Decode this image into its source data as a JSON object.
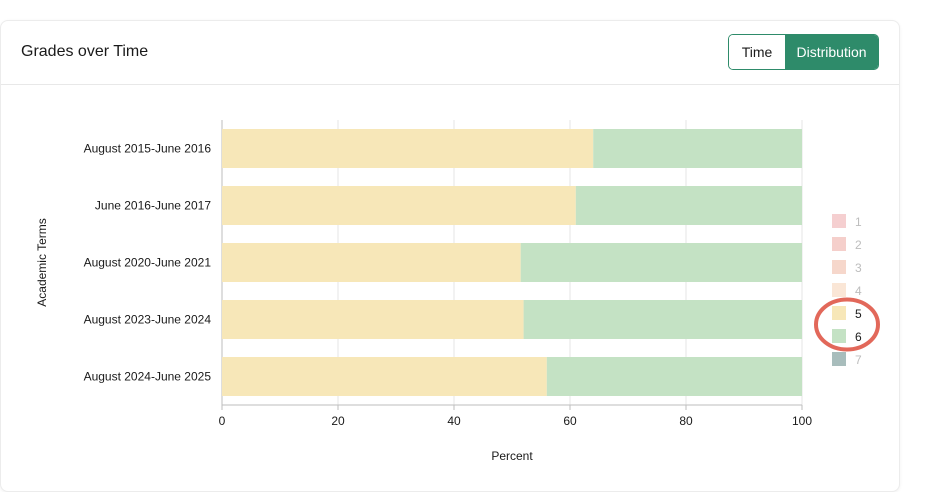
{
  "card": {
    "title": "Grades over Time",
    "toggle": {
      "time_label": "Time",
      "distribution_label": "Distribution",
      "active": "Distribution"
    }
  },
  "colors": {
    "accent": "#2e8b6a",
    "grid": "#e6e6e6"
  },
  "chart_data": {
    "type": "bar",
    "orientation": "horizontal",
    "stacked": true,
    "xlabel": "Percent",
    "ylabel": "Academic Terms",
    "xlim": [
      0,
      100
    ],
    "xticks": [
      "0",
      "20",
      "40",
      "60",
      "80",
      "100"
    ],
    "categories": [
      "August 2015-June 2016",
      "June 2016-June 2017",
      "August 2020-June 2021",
      "August 2023-June 2024",
      "August 2024-June 2025"
    ],
    "series": [
      {
        "name": "5",
        "color": "#f7e7b8",
        "values": [
          64,
          61,
          51.5,
          52,
          56
        ]
      },
      {
        "name": "6",
        "color": "#c4e2c4",
        "values": [
          36,
          39,
          48.5,
          48,
          44
        ]
      }
    ],
    "legend": {
      "placement": "right",
      "items": [
        {
          "label": "1",
          "color": "#f5cfd0",
          "active": false
        },
        {
          "label": "2",
          "color": "#f5cfcb",
          "active": false
        },
        {
          "label": "3",
          "color": "#f6d7cb",
          "active": false
        },
        {
          "label": "4",
          "color": "#fae6d6",
          "active": false
        },
        {
          "label": "5",
          "color": "#f7e7b8",
          "active": true
        },
        {
          "label": "6",
          "color": "#c4e2c4",
          "active": true
        },
        {
          "label": "7",
          "color": "#a8bdbc",
          "active": false
        }
      ]
    },
    "annotation": {
      "type": "circle",
      "highlights": [
        "5",
        "6"
      ],
      "color": "#e2685a"
    },
    "grid": true
  }
}
